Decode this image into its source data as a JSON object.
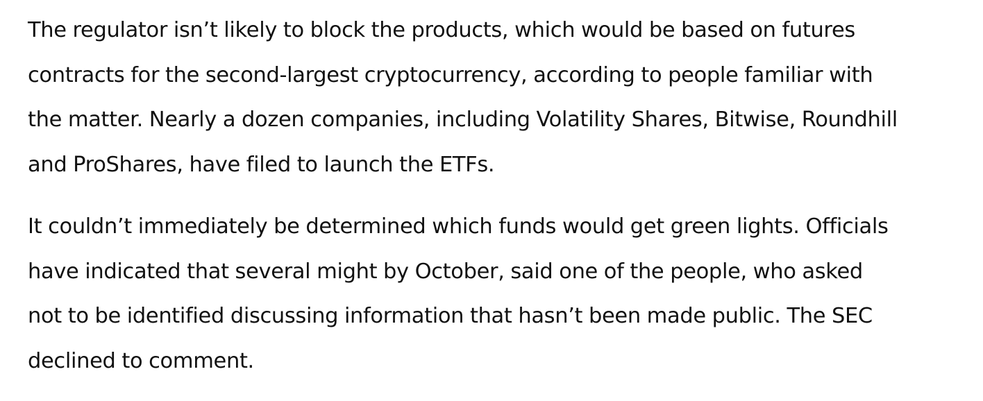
{
  "article": {
    "paragraphs": [
      {
        "lines": [
          "The regulator isn’t likely to block the products, which would be based on futures",
          "contracts for the second-largest cryptocurrency, according to people familiar with",
          "the matter. Nearly a dozen companies, including Volatility Shares, Bitwise, Roundhill",
          "and ProShares, have filed to launch the ETFs."
        ]
      },
      {
        "lines": [
          "It couldn’t immediately be determined which funds would get green lights. Officials",
          "have indicated that several might by October, said one of the people, who asked",
          "not to be identified discussing information that hasn’t been made public. The SEC",
          "declined to comment."
        ]
      }
    ]
  }
}
